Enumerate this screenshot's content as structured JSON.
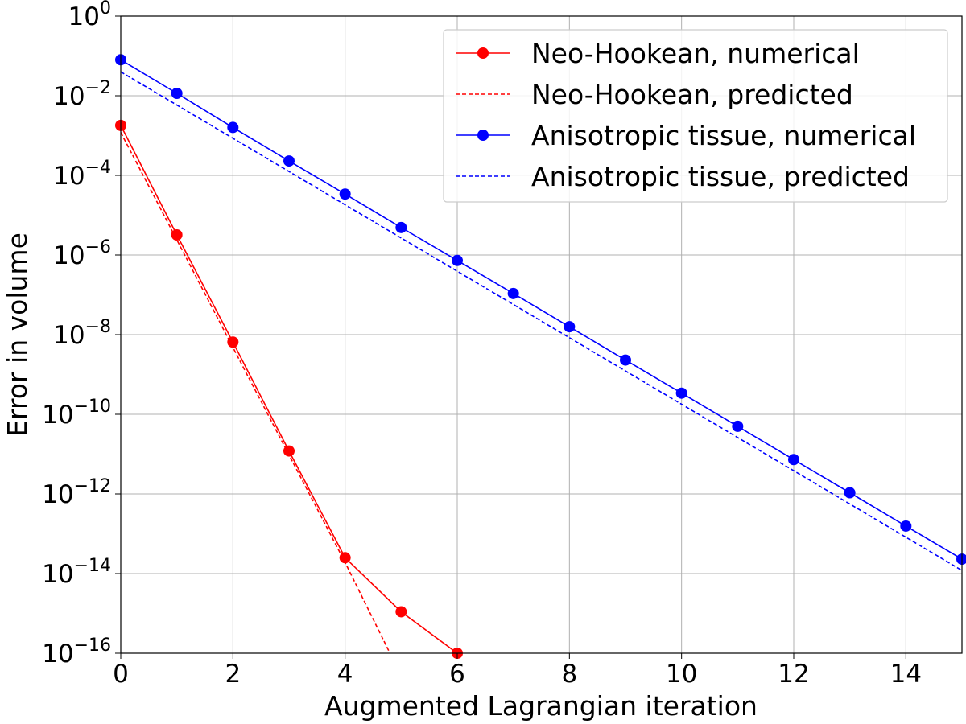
{
  "chart_data": {
    "type": "line",
    "xlabel": "Augmented Lagrangian iteration",
    "ylabel": "Error in volume",
    "xlim": [
      0,
      15
    ],
    "ylim": [
      1e-16,
      1
    ],
    "yscale": "log",
    "grid": true,
    "legend_position": "top-right",
    "x_ticks": [
      0,
      2,
      4,
      6,
      8,
      10,
      12,
      14
    ],
    "y_ticks": [
      {
        "base": "10",
        "exp": "0",
        "value": 1
      },
      {
        "base": "10",
        "exp": "−2",
        "value": 0.01
      },
      {
        "base": "10",
        "exp": "−4",
        "value": 0.0001
      },
      {
        "base": "10",
        "exp": "−6",
        "value": 1e-06
      },
      {
        "base": "10",
        "exp": "−8",
        "value": 1e-08
      },
      {
        "base": "10",
        "exp": "−10",
        "value": 1e-10
      },
      {
        "base": "10",
        "exp": "−12",
        "value": 1e-12
      },
      {
        "base": "10",
        "exp": "−14",
        "value": 1e-14
      },
      {
        "base": "10",
        "exp": "−16",
        "value": 1e-16
      }
    ],
    "series": [
      {
        "name": "Neo-Hookean, numerical",
        "color": "#ff0000",
        "style": "solid",
        "marker": "circle",
        "x": [
          0,
          1,
          2,
          3,
          4,
          5,
          6
        ],
        "y": [
          0.0018,
          3.2e-06,
          6.5e-09,
          1.2e-11,
          2.5e-14,
          1.1e-15,
          1e-16
        ]
      },
      {
        "name": "Neo-Hookean, predicted",
        "color": "#ff0000",
        "style": "dashed",
        "marker": "none",
        "x": [
          0,
          1,
          2,
          3,
          4,
          4.8
        ],
        "y": [
          0.0012,
          2.4e-06,
          4.8e-09,
          9.6e-12,
          1.9e-14,
          1e-16
        ]
      },
      {
        "name": "Anisotropic tissue, numerical",
        "color": "#0000ff",
        "style": "solid",
        "marker": "circle",
        "x": [
          0,
          1,
          2,
          3,
          4,
          5,
          6,
          7,
          8,
          9,
          10,
          11,
          12,
          13,
          14,
          15
        ],
        "y": [
          0.08,
          0.0115,
          0.0016,
          0.00023,
          3.4e-05,
          4.9e-06,
          7.3e-07,
          1.08e-07,
          1.58e-08,
          2.3e-09,
          3.4e-10,
          5e-11,
          7.3e-12,
          1.07e-12,
          1.56e-13,
          2.3e-14
        ]
      },
      {
        "name": "Anisotropic tissue, predicted",
        "color": "#0000ff",
        "style": "dashed",
        "marker": "none",
        "x": [
          0,
          15
        ],
        "y": [
          0.04,
          1.2e-14
        ]
      }
    ]
  }
}
